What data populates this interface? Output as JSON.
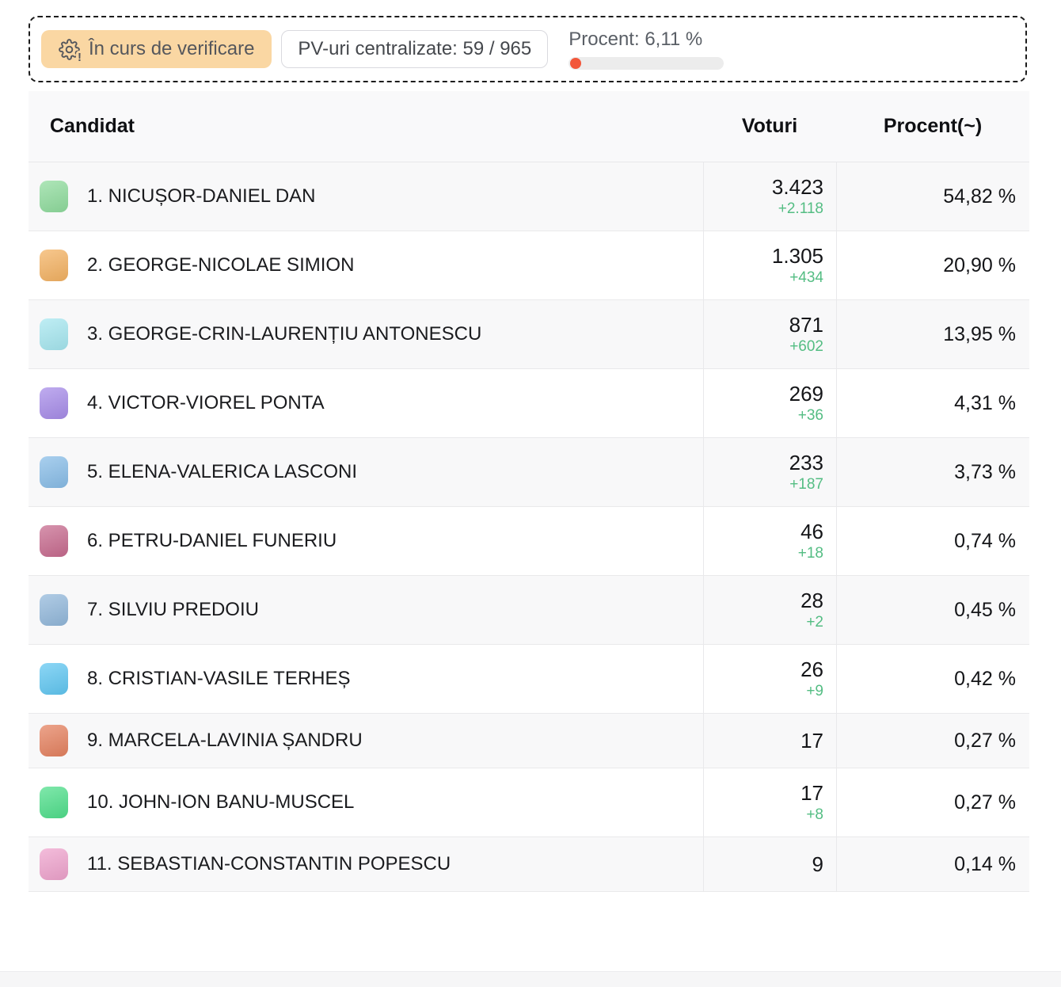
{
  "status_bar": {
    "badge": {
      "label": "În curs de verificare",
      "icon": "gear-alert-icon",
      "bg_color": "#FAD7A3",
      "text_color": "#55575c"
    },
    "pv_box": {
      "label": "PV-uri centralizate: 59 / 965"
    },
    "progress": {
      "label": "Procent: 6,11 %",
      "percent": 6.11,
      "dot_color": "#F2563A",
      "track_color": "#ececec"
    }
  },
  "table": {
    "columns": {
      "candidate": "Candidat",
      "votes": "Voturi",
      "percent": "Procent(~)"
    },
    "delta_color": "#54BD83",
    "rows": [
      {
        "rank": "1",
        "name": "NICUȘOR-DANIEL DAN",
        "votes": "3.423",
        "delta": "+2.118",
        "percent": "54,82 %",
        "color": "#8FDC9D"
      },
      {
        "rank": "2",
        "name": "GEORGE-NICOLAE SIMION",
        "votes": "1.305",
        "delta": "+434",
        "percent": "20,90 %",
        "color": "#F4B262"
      },
      {
        "rank": "3",
        "name": "GEORGE-CRIN-LAURENȚIU ANTONESCU",
        "votes": "871",
        "delta": "+602",
        "percent": "13,95 %",
        "color": "#A6E7F0"
      },
      {
        "rank": "4",
        "name": "VICTOR-VIOREL PONTA",
        "votes": "269",
        "delta": "+36",
        "percent": "4,31 %",
        "color": "#A78CE9"
      },
      {
        "rank": "5",
        "name": "ELENA-VALERICA LASCONI",
        "votes": "233",
        "delta": "+187",
        "percent": "3,73 %",
        "color": "#88BDE8"
      },
      {
        "rank": "6",
        "name": "PETRU-DANIEL FUNERIU",
        "votes": "46",
        "delta": "+18",
        "percent": "0,74 %",
        "color": "#C76A8E"
      },
      {
        "rank": "7",
        "name": "SILVIU PREDOIU",
        "votes": "28",
        "delta": "+2",
        "percent": "0,45 %",
        "color": "#92B8DB"
      },
      {
        "rank": "8",
        "name": "CRISTIAN-VASILE TERHEȘ",
        "votes": "26",
        "delta": "+9",
        "percent": "0,42 %",
        "color": "#60C7F2"
      },
      {
        "rank": "9",
        "name": "MARCELA-LAVINIA ȘANDRU",
        "votes": "17",
        "delta": "",
        "percent": "0,27 %",
        "color": "#E5815F"
      },
      {
        "rank": "10",
        "name": "JOHN-ION BANU-MUSCEL",
        "votes": "17",
        "delta": "+8",
        "percent": "0,27 %",
        "color": "#4FDF8B"
      },
      {
        "rank": "11",
        "name": "SEBASTIAN-CONSTANTIN POPESCU",
        "votes": "9",
        "delta": "",
        "percent": "0,14 %",
        "color": "#EFA3CD"
      }
    ]
  }
}
